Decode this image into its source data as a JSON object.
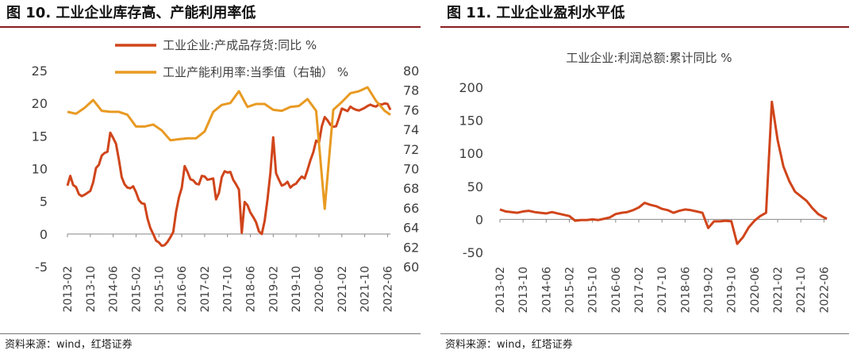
{
  "colors": {
    "inventory": "#d0451b",
    "capacity": "#e89a22",
    "profit": "#d0451b",
    "axis": "#888888",
    "title_rule": "#8a1c1c"
  },
  "left": {
    "fig_title": "图 10. 工业企业库存高、产能利用率低",
    "source": "资料来源：wind，红塔证券"
  },
  "right": {
    "fig_title": "图 11. 工业企业盈利水平低",
    "source": "资料来源：wind，红塔证券"
  },
  "chart_data": [
    {
      "type": "line",
      "title": "",
      "x_tick_labels": [
        "2013-02",
        "2013-10",
        "2014-06",
        "2015-02",
        "2015-10",
        "2016-06",
        "2017-02",
        "2017-10",
        "2018-06",
        "2019-02",
        "2019-10",
        "2020-06",
        "2021-02",
        "2021-10",
        "2022-06"
      ],
      "y_left": {
        "range": [
          -5,
          25
        ],
        "ticks": [
          "-5",
          "0",
          "5",
          "10",
          "15",
          "20",
          "25"
        ]
      },
      "y_right": {
        "range": [
          60,
          80
        ],
        "ticks": [
          "60",
          "62",
          "64",
          "66",
          "68",
          "70",
          "72",
          "74",
          "76",
          "78",
          "80"
        ]
      },
      "legend": [
        {
          "label": "工业企业:产成品存货:同比 %",
          "series": "inventory"
        },
        {
          "label": "工业产能利用率:当季值（右轴） %",
          "series": "capacity"
        }
      ],
      "series": [
        {
          "name": "工业企业:产成品存货:同比 %",
          "axis": "left",
          "x_months": [
            0,
            1,
            2,
            3,
            4,
            5,
            6,
            7,
            8,
            9,
            10,
            11,
            12,
            13,
            14,
            15,
            16,
            17,
            18,
            19,
            20,
            21,
            22,
            23,
            24,
            25,
            26,
            27,
            28,
            29,
            30,
            31,
            32,
            33,
            34,
            35,
            36,
            37,
            38,
            39,
            40,
            41,
            42,
            43,
            44,
            45,
            46,
            47,
            48,
            49,
            50,
            51,
            52,
            53,
            54,
            55,
            56,
            57,
            58,
            59,
            60,
            61,
            62,
            63,
            64,
            65,
            66,
            67,
            68,
            69,
            70,
            71,
            72,
            73,
            74,
            75,
            76,
            77,
            78,
            79,
            80,
            81,
            82,
            83,
            84,
            85,
            86,
            87,
            88,
            89,
            90,
            91,
            92,
            93,
            94,
            95,
            96,
            97,
            98,
            99,
            100,
            101,
            102,
            103,
            104,
            105,
            106,
            107,
            108,
            109,
            110,
            111,
            112,
            113
          ],
          "values": [
            7.4,
            8.9,
            7.5,
            7.2,
            6.1,
            5.8,
            6.0,
            6.3,
            6.6,
            7.9,
            10.1,
            10.6,
            12.0,
            12.4,
            12.6,
            15.5,
            14.7,
            13.8,
            11.4,
            8.7,
            7.6,
            7.1,
            7.0,
            7.3,
            6.4,
            5.2,
            4.7,
            4.6,
            2.4,
            0.9,
            0.0,
            -1.0,
            -1.3,
            -1.8,
            -1.7,
            -1.2,
            -0.5,
            0.3,
            3.4,
            5.6,
            7.1,
            10.4,
            9.5,
            8.4,
            8.2,
            7.7,
            7.6,
            8.9,
            8.8,
            8.3,
            8.4,
            8.5,
            5.3,
            6.3,
            8.7,
            9.6,
            9.4,
            9.5,
            8.3,
            7.6,
            6.8,
            0.2,
            4.9,
            4.4,
            3.3,
            2.6,
            1.8,
            0.4,
            0.0,
            2.0,
            5.3,
            9.3,
            14.8,
            9.3,
            8.3,
            7.4,
            7.6,
            8.0,
            7.1,
            7.5,
            7.7,
            8.3,
            8.8,
            8.5,
            9.8,
            11.3,
            12.5,
            14.3,
            14.0,
            16.5,
            17.9,
            17.4,
            16.7,
            16.4,
            16.5,
            17.8,
            19.2,
            19.0,
            18.8,
            19.5,
            19.2,
            19.0,
            18.9,
            19.1,
            19.3,
            19.6,
            19.8,
            19.6,
            19.5,
            19.9,
            19.8,
            20.0,
            19.9,
            19.0
          ],
          "color_key": "inventory"
        },
        {
          "name": "工业产能利用率:当季值（右轴） %",
          "axis": "right",
          "x_months": [
            0,
            3,
            6,
            9,
            12,
            15,
            18,
            21,
            24,
            27,
            30,
            33,
            36,
            39,
            42,
            45,
            48,
            51,
            54,
            57,
            60,
            63,
            66,
            69,
            72,
            75,
            78,
            81,
            84,
            87,
            90,
            93,
            96,
            99,
            102,
            105,
            108,
            111,
            113
          ],
          "values": [
            75.8,
            75.6,
            76.2,
            77.0,
            75.9,
            75.8,
            75.8,
            75.5,
            74.3,
            74.3,
            74.5,
            73.9,
            72.9,
            73.0,
            73.1,
            73.1,
            73.8,
            75.8,
            76.5,
            76.7,
            77.9,
            76.3,
            76.6,
            76.6,
            76.0,
            75.9,
            76.3,
            76.4,
            77.1,
            75.9,
            65.9,
            76.0,
            76.8,
            77.7,
            77.9,
            78.3,
            76.9,
            75.9,
            75.5
          ],
          "color_key": "capacity"
        }
      ]
    },
    {
      "type": "line",
      "title": "工业企业:利润总额:累计同比 %",
      "x_tick_labels": [
        "2013-02",
        "2013-10",
        "2014-06",
        "2015-02",
        "2015-10",
        "2016-06",
        "2017-02",
        "2017-10",
        "2018-06",
        "2019-02",
        "2019-10",
        "2020-06",
        "2021-02",
        "2021-10",
        "2022-06"
      ],
      "y_left": {
        "range": [
          -50,
          200
        ],
        "ticks": [
          "-50",
          "0",
          "50",
          "100",
          "150",
          "200"
        ]
      },
      "series": [
        {
          "name": "工业企业:利润总额:累计同比 %",
          "axis": "left",
          "x_months": [
            0,
            2,
            4,
            6,
            8,
            10,
            12,
            14,
            16,
            18,
            20,
            22,
            24,
            26,
            28,
            30,
            32,
            34,
            36,
            38,
            40,
            42,
            44,
            46,
            48,
            50,
            52,
            54,
            56,
            58,
            60,
            62,
            64,
            66,
            68,
            70,
            72,
            74,
            76,
            78,
            80,
            82,
            84,
            86,
            88,
            90,
            92,
            94,
            96,
            98,
            100,
            102,
            104,
            106,
            108,
            110,
            112,
            113
          ],
          "values": [
            15,
            12,
            11,
            10,
            12,
            13,
            11,
            10,
            9,
            11,
            9,
            7,
            5,
            -2,
            -1,
            -1,
            0,
            -1,
            1,
            3,
            8,
            10,
            11,
            14,
            18,
            25,
            22,
            20,
            16,
            14,
            10,
            13,
            15,
            14,
            12,
            10,
            -13,
            -3,
            -3,
            -2,
            -3,
            -37,
            -27,
            -12,
            -2,
            5,
            10,
            178,
            120,
            80,
            58,
            42,
            35,
            28,
            17,
            8,
            3,
            1
          ],
          "color_key": "profit"
        }
      ]
    }
  ]
}
